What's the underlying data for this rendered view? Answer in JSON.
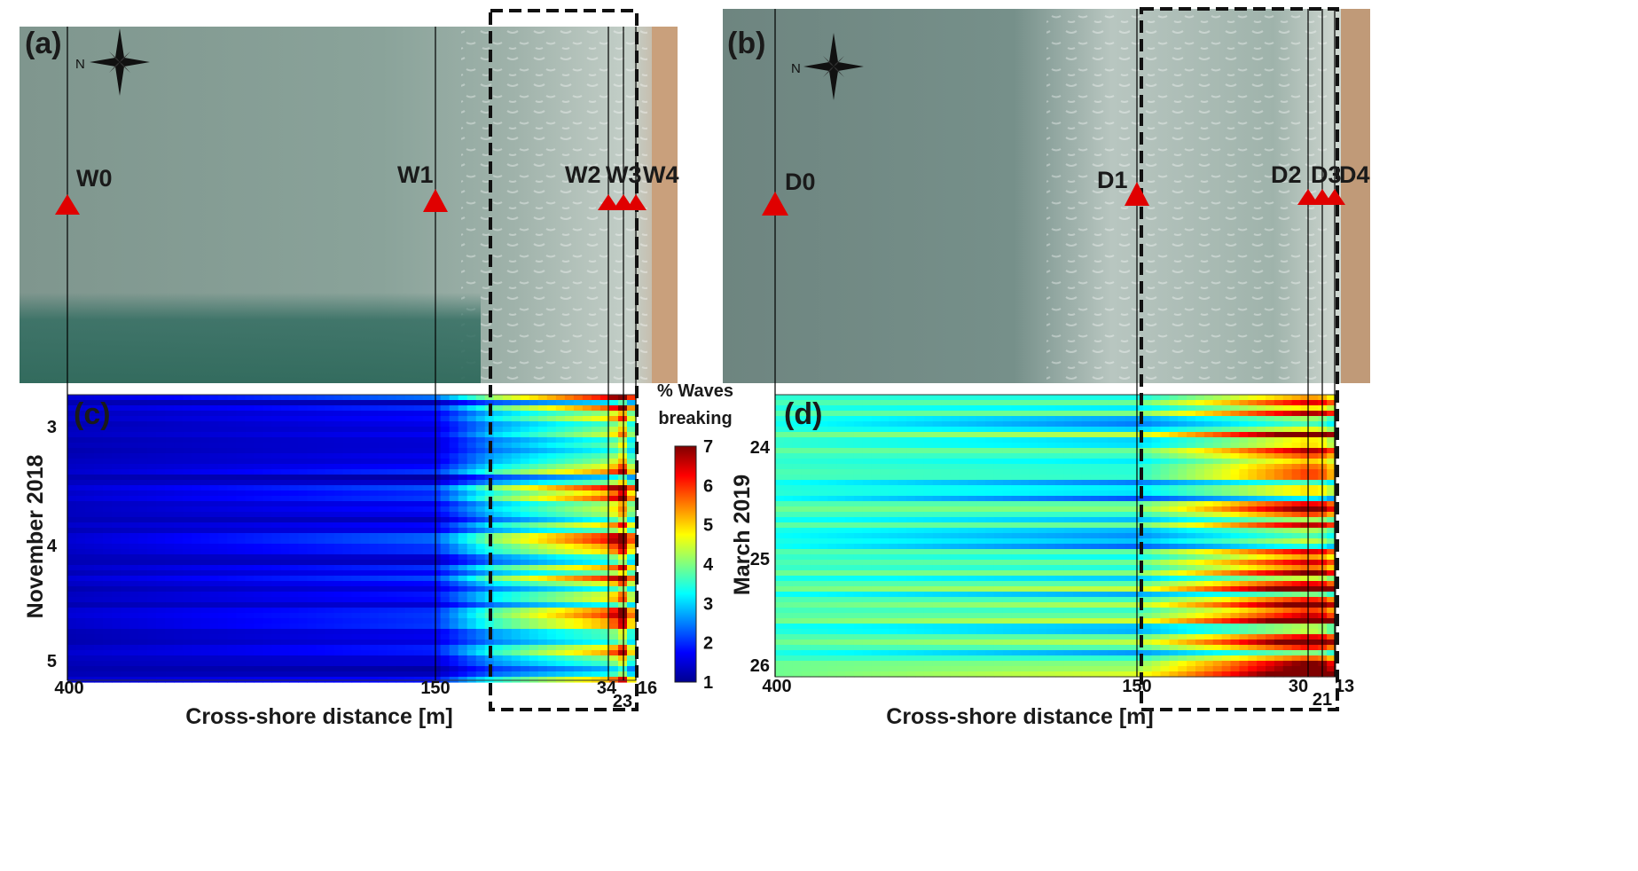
{
  "panels": {
    "a": "(a)",
    "b": "(b)",
    "c": "(c)",
    "d": "(d)"
  },
  "compass_letter": "N",
  "sensors_a": [
    "W0",
    "W1",
    "W2",
    "W3",
    "W4"
  ],
  "sensors_b": [
    "D0",
    "D1",
    "D2",
    "D3",
    "D4"
  ],
  "colorbar": {
    "title_line1": "% Waves",
    "title_line2": "breaking",
    "ticks": [
      "7",
      "6",
      "5",
      "4",
      "3",
      "2",
      "1"
    ],
    "range": [
      1,
      7
    ],
    "colormap": "jet"
  },
  "chart_data": [
    {
      "type": "heatmap",
      "panel": "(c)",
      "ylabel": "November 2018",
      "xlabel": "Cross-shore distance [m]",
      "yticks": [
        "3",
        "4",
        "5"
      ],
      "xticks": [
        "400",
        "150",
        "34",
        "23",
        "16"
      ],
      "xlim": [
        400,
        16
      ],
      "zlim": [
        1,
        7
      ],
      "mean_profile": {
        "x": [
          400,
          150,
          90,
          34,
          23,
          16
        ],
        "value": [
          1.4,
          1.8,
          3.2,
          4.6,
          5.8,
          3.5
        ]
      }
    },
    {
      "type": "heatmap",
      "panel": "(d)",
      "ylabel": "March 2019",
      "xlabel": "Cross-shore distance [m]",
      "yticks": [
        "24",
        "25",
        "26"
      ],
      "xticks": [
        "400",
        "150",
        "30",
        "21",
        "13"
      ],
      "xlim": [
        400,
        13
      ],
      "zlim": [
        1,
        7
      ],
      "mean_profile": {
        "x": [
          400,
          150,
          90,
          30,
          21,
          13
        ],
        "value": [
          3.6,
          3.4,
          4.4,
          5.6,
          5.4,
          4.8
        ]
      }
    }
  ]
}
